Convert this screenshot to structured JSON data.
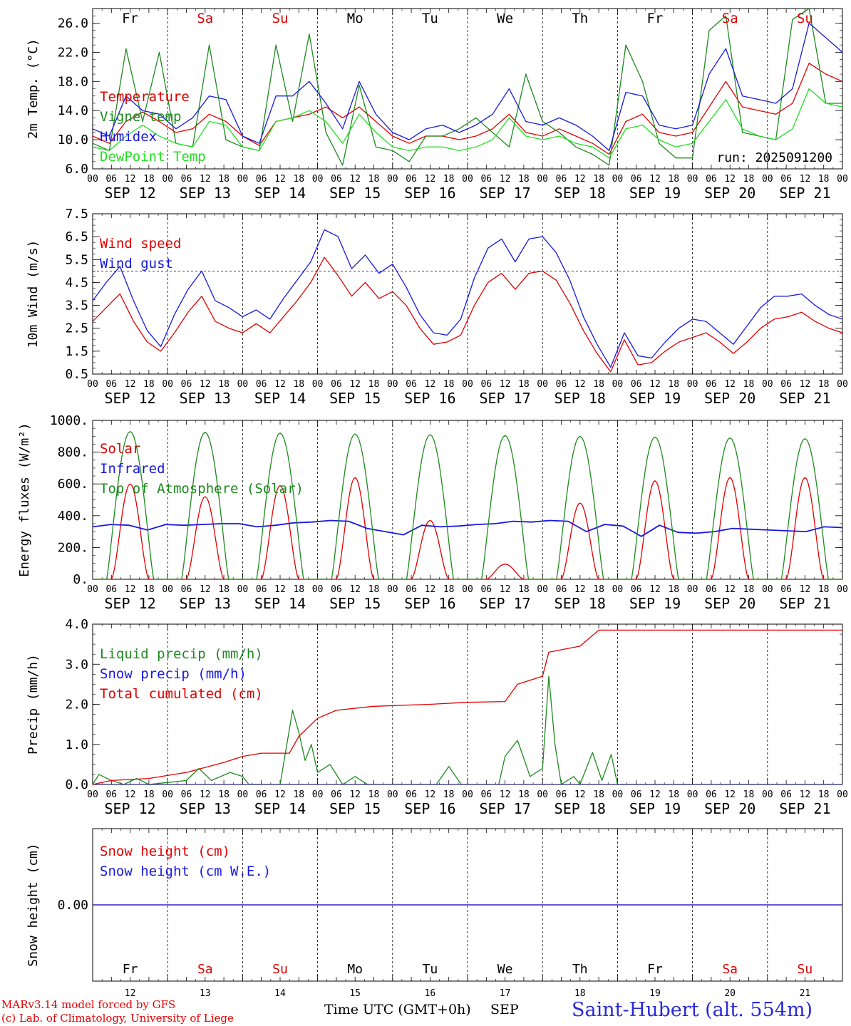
{
  "colors": {
    "red": "#e00000",
    "green": "#1e8a1e",
    "blue": "#1818e0",
    "lightgreen": "#22e022",
    "black": "#000000"
  },
  "days": [
    {
      "abbr": "Fr",
      "date": "SEP 12",
      "num": "12",
      "weekend": false
    },
    {
      "abbr": "Sa",
      "date": "SEP 13",
      "num": "13",
      "weekend": true
    },
    {
      "abbr": "Su",
      "date": "SEP 14",
      "num": "14",
      "weekend": true
    },
    {
      "abbr": "Mo",
      "date": "SEP 15",
      "num": "15",
      "weekend": false
    },
    {
      "abbr": "Tu",
      "date": "SEP 16",
      "num": "16",
      "weekend": false
    },
    {
      "abbr": "We",
      "date": "SEP 17",
      "num": "17",
      "weekend": false
    },
    {
      "abbr": "Th",
      "date": "SEP 18",
      "num": "18",
      "weekend": false
    },
    {
      "abbr": "Fr",
      "date": "SEP 19",
      "num": "19",
      "weekend": false
    },
    {
      "abbr": "Sa",
      "date": "SEP 20",
      "num": "20",
      "weekend": true
    },
    {
      "abbr": "Su",
      "date": "SEP 21",
      "num": "21",
      "weekend": true
    }
  ],
  "hour_ticks": [
    "00",
    "06",
    "12",
    "18"
  ],
  "footer": {
    "credit_line1": "MARv3.14 model forced by GFS",
    "credit_line2": "(c) Lab. of Climatology, University of Liege",
    "x_title": "Time UTC (GMT+0h)",
    "x_month": "SEP",
    "station": "Saint-Hubert (alt. 554m)"
  },
  "chart_data": [
    {
      "type": "line",
      "ylabel": "2m Temp. (°C)",
      "ylim": [
        6.0,
        28.0
      ],
      "ytick_labels": [
        "6.0",
        "10.0",
        "14.0",
        "18.0",
        "22.0",
        "26.0"
      ],
      "run_label": "run: 2025091200",
      "x_hours_step": 6,
      "series": [
        {
          "name": "Temperature",
          "color": "red",
          "values": [
            10.5,
            9.5,
            12.5,
            13.8,
            12.5,
            11.0,
            11.5,
            13.5,
            12.5,
            10.5,
            9.2,
            12.5,
            13.0,
            13.5,
            14.5,
            13.0,
            14.5,
            12.5,
            10.5,
            9.5,
            10.5,
            10.5,
            10.0,
            10.5,
            11.5,
            13.5,
            11.0,
            10.5,
            11.5,
            10.5,
            9.5,
            8.0,
            12.5,
            13.5,
            11.0,
            10.5,
            11.0,
            14.5,
            18.0,
            14.5,
            14.0,
            13.5,
            15.0,
            20.5,
            19.0,
            18.0
          ]
        },
        {
          "name": "Vigne temp",
          "color": "green",
          "values": [
            9.5,
            8.5,
            22.5,
            12.5,
            22.0,
            9.5,
            9.0,
            23.0,
            10.0,
            9.0,
            8.5,
            23.0,
            12.5,
            24.5,
            11.0,
            6.5,
            17.5,
            9.0,
            8.5,
            7.0,
            10.5,
            10.5,
            11.5,
            13.0,
            11.0,
            9.0,
            19.0,
            12.5,
            11.0,
            9.0,
            8.0,
            6.5,
            23.0,
            18.0,
            9.5,
            7.5,
            7.5,
            25.0,
            27.0,
            11.0,
            10.5,
            10.0,
            26.5,
            28.0,
            15.0,
            15.0
          ]
        },
        {
          "name": "Humidex",
          "color": "blue",
          "values": [
            11.5,
            10.5,
            16.0,
            14.0,
            13.5,
            11.5,
            13.0,
            16.0,
            15.5,
            10.5,
            9.5,
            16.0,
            16.0,
            18.0,
            15.0,
            11.5,
            18.0,
            13.5,
            11.0,
            10.0,
            11.5,
            12.0,
            11.0,
            12.0,
            13.5,
            17.0,
            12.5,
            12.0,
            13.0,
            12.0,
            10.5,
            8.5,
            16.5,
            16.0,
            12.0,
            11.5,
            12.0,
            19.0,
            22.5,
            16.0,
            15.5,
            15.0,
            17.0,
            26.0,
            24.0,
            22.0
          ]
        },
        {
          "name": "DewPoint Temp",
          "color": "lightgreen",
          "values": [
            9.0,
            8.5,
            10.5,
            12.0,
            10.5,
            9.5,
            9.0,
            12.5,
            12.0,
            9.0,
            8.5,
            12.5,
            13.0,
            14.0,
            12.5,
            9.5,
            13.5,
            11.0,
            9.0,
            8.5,
            9.0,
            9.0,
            8.5,
            9.0,
            10.0,
            13.0,
            10.5,
            10.0,
            10.5,
            9.5,
            9.0,
            7.5,
            11.5,
            12.0,
            10.0,
            9.0,
            9.5,
            12.5,
            15.5,
            11.5,
            10.5,
            10.0,
            11.5,
            17.0,
            15.0,
            14.5
          ]
        }
      ]
    },
    {
      "type": "line",
      "ylabel": "10m Wind (m/s)",
      "ylim": [
        0.5,
        7.5
      ],
      "ytick_labels": [
        "0.5",
        "1.5",
        "2.5",
        "3.5",
        "4.5",
        "5.5",
        "6.5",
        "7.5"
      ],
      "reference_line": 5.0,
      "x_hours_step": 6,
      "series": [
        {
          "name": "Wind speed",
          "color": "red",
          "values": [
            2.8,
            3.4,
            4.0,
            2.8,
            1.9,
            1.5,
            2.3,
            3.2,
            3.9,
            2.8,
            2.5,
            2.3,
            2.7,
            2.3,
            3.0,
            3.7,
            4.5,
            5.6,
            4.8,
            3.9,
            4.5,
            3.8,
            4.1,
            3.5,
            2.5,
            1.8,
            1.9,
            2.2,
            3.5,
            4.5,
            4.9,
            4.2,
            4.9,
            5.0,
            4.6,
            3.6,
            2.4,
            1.4,
            0.6,
            2.0,
            0.9,
            1.0,
            1.5,
            1.9,
            2.1,
            2.3,
            1.9,
            1.4,
            1.9,
            2.5,
            2.9,
            3.0,
            3.2,
            2.8,
            2.5,
            2.3
          ]
        },
        {
          "name": "Wind gust",
          "color": "blue",
          "values": [
            3.7,
            4.5,
            5.2,
            3.7,
            2.4,
            1.7,
            3.1,
            4.2,
            5.0,
            3.7,
            3.4,
            3.0,
            3.3,
            2.9,
            3.8,
            4.6,
            5.4,
            6.8,
            6.5,
            5.1,
            5.7,
            4.9,
            5.3,
            4.3,
            3.1,
            2.3,
            2.2,
            2.9,
            4.7,
            6.0,
            6.4,
            5.4,
            6.4,
            6.5,
            5.8,
            4.6,
            3.0,
            1.8,
            0.8,
            2.3,
            1.3,
            1.2,
            1.9,
            2.5,
            2.9,
            2.8,
            2.3,
            1.8,
            2.6,
            3.4,
            3.9,
            3.9,
            4.0,
            3.5,
            3.1,
            2.9
          ]
        }
      ]
    },
    {
      "type": "line",
      "ylabel": "Energy fluxes (W/m²)",
      "ylim": [
        0,
        1000
      ],
      "ytick_labels": [
        "0.",
        "200.",
        "400.",
        "600.",
        "800.",
        "1000."
      ],
      "series": [
        {
          "name": "Solar",
          "color": "red",
          "day_peaks": [
            600,
            520,
            590,
            640,
            370,
            95,
            480,
            620,
            640,
            640
          ]
        },
        {
          "name": "Infrared",
          "color": "blue",
          "values": [
            330,
            345,
            340,
            310,
            345,
            340,
            345,
            350,
            350,
            330,
            340,
            355,
            360,
            370,
            365,
            320,
            300,
            280,
            340,
            330,
            335,
            345,
            350,
            365,
            360,
            370,
            365,
            300,
            345,
            335,
            270,
            340,
            295,
            290,
            300,
            320,
            315,
            310,
            305,
            300,
            330,
            325
          ]
        },
        {
          "name": "Top of Atmosphere (Solar)",
          "color": "green",
          "day_peaks": [
            930,
            925,
            920,
            915,
            910,
            905,
            900,
            895,
            890,
            885
          ]
        }
      ]
    },
    {
      "type": "line",
      "ylabel": "Precip (mm/h)",
      "ylim": [
        0.0,
        4.0
      ],
      "ytick_labels": [
        "0.0",
        "1.0",
        "2.0",
        "3.0",
        "4.0"
      ],
      "series": [
        {
          "name": "Liquid precip (mm/h)",
          "color": "green",
          "values": [
            [
              0,
              0.0
            ],
            [
              2,
              0.25
            ],
            [
              6,
              0.1
            ],
            [
              10,
              0.0
            ],
            [
              14,
              0.15
            ],
            [
              18,
              0.0
            ],
            [
              24,
              0.05
            ],
            [
              30,
              0.1
            ],
            [
              34,
              0.4
            ],
            [
              38,
              0.1
            ],
            [
              44,
              0.3
            ],
            [
              48,
              0.2
            ],
            [
              50,
              0.0
            ],
            [
              60,
              0.0
            ],
            [
              64,
              1.85
            ],
            [
              66,
              1.3
            ],
            [
              68,
              0.6
            ],
            [
              70,
              1.0
            ],
            [
              72,
              0.3
            ],
            [
              76,
              0.5
            ],
            [
              80,
              0.0
            ],
            [
              84,
              0.2
            ],
            [
              88,
              0.0
            ],
            [
              110,
              0.0
            ],
            [
              114,
              0.45
            ],
            [
              118,
              0.0
            ],
            [
              130,
              0.0
            ],
            [
              132,
              0.7
            ],
            [
              136,
              1.1
            ],
            [
              140,
              0.2
            ],
            [
              144,
              0.4
            ],
            [
              146,
              2.7
            ],
            [
              148,
              1.0
            ],
            [
              150,
              0.0
            ],
            [
              154,
              0.2
            ],
            [
              156,
              0.0
            ],
            [
              160,
              0.8
            ],
            [
              163,
              0.1
            ],
            [
              166,
              0.75
            ],
            [
              168,
              0.0
            ],
            [
              240,
              0.0
            ]
          ]
        },
        {
          "name": "Snow precip (mm/h)",
          "color": "blue",
          "values": [
            [
              0,
              0.0
            ],
            [
              240,
              0.0
            ]
          ]
        },
        {
          "name": "Total cumulated (cm)",
          "color": "red",
          "values": [
            [
              0,
              0.0
            ],
            [
              6,
              0.1
            ],
            [
              18,
              0.15
            ],
            [
              30,
              0.3
            ],
            [
              42,
              0.55
            ],
            [
              48,
              0.7
            ],
            [
              54,
              0.78
            ],
            [
              63,
              0.78
            ],
            [
              66,
              1.2
            ],
            [
              72,
              1.65
            ],
            [
              78,
              1.85
            ],
            [
              90,
              1.95
            ],
            [
              108,
              2.0
            ],
            [
              120,
              2.05
            ],
            [
              132,
              2.07
            ],
            [
              136,
              2.5
            ],
            [
              144,
              2.7
            ],
            [
              146,
              3.3
            ],
            [
              156,
              3.45
            ],
            [
              162,
              3.85
            ],
            [
              240,
              3.85
            ]
          ]
        }
      ]
    },
    {
      "type": "line",
      "ylabel": "Snow height (cm)",
      "ylim": [
        -1,
        1
      ],
      "ytick_labels": [
        "0.00"
      ],
      "series": [
        {
          "name": "Snow height (cm)",
          "color": "red",
          "values": [
            [
              0,
              0.0
            ],
            [
              240,
              0.0
            ]
          ]
        },
        {
          "name": "Snow height (cm W.E.)",
          "color": "blue",
          "values": [
            [
              0,
              0.0
            ],
            [
              240,
              0.0
            ]
          ]
        }
      ]
    }
  ]
}
